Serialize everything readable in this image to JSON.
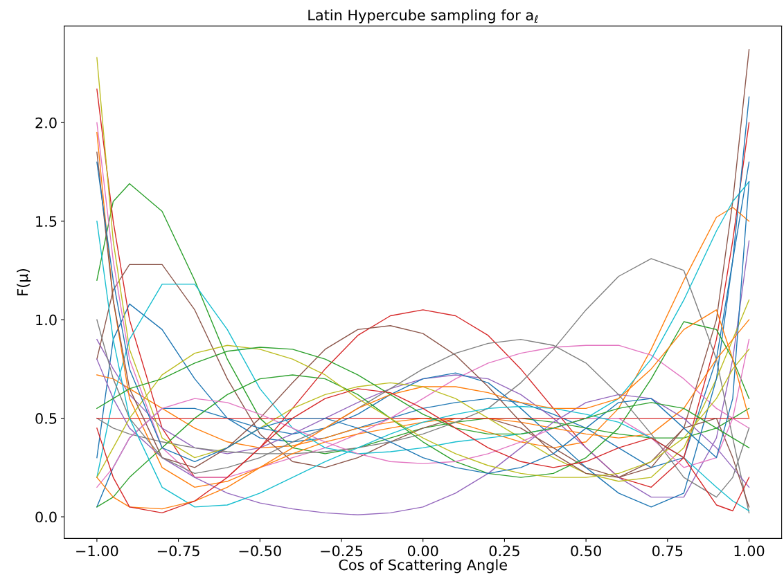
{
  "chart_data": {
    "type": "line",
    "title": "Latin Hypercube sampling for a$_{ℓ}$",
    "xlabel": "Cos of Scattering Angle",
    "ylabel": "F(μ)",
    "x": [
      -1,
      -0.95,
      -0.9,
      -0.8,
      -0.7,
      -0.6,
      -0.5,
      -0.4,
      -0.3,
      -0.2,
      -0.1,
      0,
      0.1,
      0.2,
      0.3,
      0.4,
      0.5,
      0.6,
      0.7,
      0.8,
      0.9,
      0.95,
      1
    ],
    "xlim": [
      -1.1,
      1.1
    ],
    "ylim": [
      -0.11,
      2.49
    ],
    "xticks": [
      {
        "value": -1,
        "label": "−1.00"
      },
      {
        "value": -0.75,
        "label": "−0.75"
      },
      {
        "value": -0.5,
        "label": "−0.50"
      },
      {
        "value": -0.25,
        "label": "−0.25"
      },
      {
        "value": 0,
        "label": "0.00"
      },
      {
        "value": 0.25,
        "label": "0.25"
      },
      {
        "value": 0.5,
        "label": "0.50"
      },
      {
        "value": 0.75,
        "label": "0.75"
      },
      {
        "value": 1,
        "label": "1.00"
      }
    ],
    "yticks": [
      {
        "value": 0,
        "label": "0.0"
      },
      {
        "value": 0.5,
        "label": "0.5"
      },
      {
        "value": 1,
        "label": "1.0"
      },
      {
        "value": 1.5,
        "label": "1.5"
      },
      {
        "value": 2,
        "label": "2.0"
      }
    ],
    "grid": false,
    "marker": "none",
    "line_style": "solid",
    "series": [
      {
        "color": "#1f77b4",
        "values": [
          0.3,
          0.9,
          1.08,
          0.95,
          0.7,
          0.5,
          0.4,
          0.38,
          0.4,
          0.45,
          0.5,
          0.55,
          0.58,
          0.6,
          0.58,
          0.52,
          0.45,
          0.35,
          0.25,
          0.3,
          0.8,
          1.3,
          1.8
        ]
      },
      {
        "color": "#ff7f0e",
        "values": [
          0.72,
          0.7,
          0.65,
          0.55,
          0.45,
          0.38,
          0.35,
          0.36,
          0.4,
          0.45,
          0.48,
          0.5,
          0.48,
          0.43,
          0.38,
          0.35,
          0.38,
          0.55,
          0.85,
          1.2,
          1.52,
          1.57,
          1.5
        ]
      },
      {
        "color": "#2ca02c",
        "values": [
          1.2,
          1.6,
          1.69,
          1.55,
          1.2,
          0.8,
          0.5,
          0.35,
          0.32,
          0.35,
          0.4,
          0.45,
          0.48,
          0.5,
          0.5,
          0.48,
          0.45,
          0.42,
          0.4,
          0.4,
          0.45,
          0.5,
          0.55
        ]
      },
      {
        "color": "#d62728",
        "values": [
          2.17,
          1.5,
          1.0,
          0.45,
          0.2,
          0.2,
          0.35,
          0.55,
          0.75,
          0.92,
          1.02,
          1.05,
          1.02,
          0.92,
          0.75,
          0.55,
          0.35,
          0.2,
          0.15,
          0.3,
          0.9,
          1.4,
          2.0
        ]
      },
      {
        "color": "#9467bd",
        "values": [
          0.9,
          0.75,
          0.62,
          0.45,
          0.35,
          0.32,
          0.35,
          0.42,
          0.5,
          0.58,
          0.65,
          0.7,
          0.72,
          0.7,
          0.62,
          0.5,
          0.35,
          0.2,
          0.1,
          0.1,
          0.4,
          0.8,
          1.4
        ]
      },
      {
        "color": "#8c564b",
        "values": [
          0.8,
          1.15,
          1.28,
          1.28,
          1.05,
          0.7,
          0.42,
          0.28,
          0.25,
          0.3,
          0.38,
          0.45,
          0.5,
          0.5,
          0.45,
          0.35,
          0.25,
          0.2,
          0.25,
          0.45,
          1.0,
          1.6,
          2.37
        ]
      },
      {
        "color": "#e377c2",
        "values": [
          2.0,
          1.3,
          0.8,
          0.35,
          0.2,
          0.2,
          0.25,
          0.3,
          0.35,
          0.42,
          0.5,
          0.6,
          0.7,
          0.78,
          0.83,
          0.86,
          0.87,
          0.87,
          0.82,
          0.7,
          0.55,
          0.5,
          0.45
        ]
      },
      {
        "color": "#7f7f7f",
        "values": [
          0.5,
          0.45,
          0.42,
          0.38,
          0.35,
          0.33,
          0.32,
          0.32,
          0.33,
          0.35,
          0.38,
          0.42,
          0.48,
          0.55,
          0.68,
          0.85,
          1.05,
          1.22,
          1.31,
          1.25,
          0.8,
          0.4,
          0.02
        ]
      },
      {
        "color": "#bcbd22",
        "values": [
          2.33,
          1.4,
          0.85,
          0.4,
          0.3,
          0.35,
          0.45,
          0.55,
          0.62,
          0.66,
          0.68,
          0.66,
          0.6,
          0.5,
          0.4,
          0.3,
          0.22,
          0.18,
          0.2,
          0.35,
          0.7,
          0.9,
          1.1
        ]
      },
      {
        "color": "#17becf",
        "values": [
          0.2,
          0.6,
          0.9,
          1.18,
          1.18,
          0.95,
          0.65,
          0.45,
          0.35,
          0.32,
          0.33,
          0.35,
          0.38,
          0.4,
          0.42,
          0.45,
          0.5,
          0.6,
          0.8,
          1.1,
          1.45,
          1.6,
          1.7
        ]
      },
      {
        "color": "#1f77b4",
        "values": [
          0.05,
          0.25,
          0.4,
          0.55,
          0.55,
          0.5,
          0.45,
          0.42,
          0.45,
          0.52,
          0.62,
          0.7,
          0.73,
          0.68,
          0.55,
          0.4,
          0.25,
          0.12,
          0.05,
          0.12,
          0.7,
          1.3,
          2.13
        ]
      },
      {
        "color": "#ff7f0e",
        "values": [
          1.95,
          1.1,
          0.6,
          0.25,
          0.15,
          0.18,
          0.25,
          0.32,
          0.38,
          0.42,
          0.45,
          0.48,
          0.5,
          0.5,
          0.48,
          0.45,
          0.42,
          0.4,
          0.42,
          0.55,
          0.8,
          0.9,
          1.0
        ]
      },
      {
        "color": "#2ca02c",
        "values": [
          0.05,
          0.1,
          0.2,
          0.35,
          0.5,
          0.62,
          0.7,
          0.72,
          0.7,
          0.62,
          0.5,
          0.38,
          0.28,
          0.22,
          0.2,
          0.22,
          0.3,
          0.45,
          0.7,
          0.99,
          0.95,
          0.8,
          0.6
        ]
      },
      {
        "color": "#d62728",
        "values": [
          0.5,
          0.5,
          0.5,
          0.5,
          0.5,
          0.5,
          0.5,
          0.5,
          0.5,
          0.5,
          0.5,
          0.5,
          0.5,
          0.5,
          0.5,
          0.5,
          0.5,
          0.5,
          0.5,
          0.5,
          0.5,
          0.5,
          0.5
        ]
      },
      {
        "color": "#9467bd",
        "values": [
          0.8,
          0.6,
          0.45,
          0.3,
          0.2,
          0.12,
          0.07,
          0.04,
          0.02,
          0.01,
          0.02,
          0.05,
          0.12,
          0.22,
          0.35,
          0.48,
          0.58,
          0.62,
          0.6,
          0.5,
          0.35,
          0.25,
          0.15
        ]
      },
      {
        "color": "#8c564b",
        "values": [
          1.85,
          1.1,
          0.65,
          0.3,
          0.25,
          0.35,
          0.5,
          0.68,
          0.85,
          0.95,
          0.97,
          0.93,
          0.82,
          0.66,
          0.48,
          0.32,
          0.22,
          0.2,
          0.28,
          0.45,
          0.5,
          0.3,
          0.05
        ]
      },
      {
        "color": "#e377c2",
        "values": [
          0.15,
          0.25,
          0.4,
          0.55,
          0.6,
          0.58,
          0.52,
          0.45,
          0.38,
          0.32,
          0.28,
          0.27,
          0.28,
          0.32,
          0.38,
          0.45,
          0.5,
          0.5,
          0.4,
          0.25,
          0.3,
          0.5,
          0.9
        ]
      },
      {
        "color": "#7f7f7f",
        "values": [
          1.0,
          0.7,
          0.5,
          0.3,
          0.22,
          0.25,
          0.3,
          0.38,
          0.45,
          0.55,
          0.65,
          0.75,
          0.83,
          0.88,
          0.9,
          0.87,
          0.78,
          0.62,
          0.42,
          0.2,
          0.1,
          0.2,
          0.45
        ]
      },
      {
        "color": "#bcbd22",
        "values": [
          0.2,
          0.35,
          0.5,
          0.72,
          0.83,
          0.87,
          0.85,
          0.8,
          0.72,
          0.6,
          0.5,
          0.4,
          0.32,
          0.26,
          0.22,
          0.2,
          0.2,
          0.22,
          0.28,
          0.4,
          0.6,
          0.75,
          0.85
        ]
      },
      {
        "color": "#17becf",
        "values": [
          1.5,
          0.9,
          0.5,
          0.15,
          0.05,
          0.06,
          0.12,
          0.2,
          0.28,
          0.35,
          0.42,
          0.48,
          0.52,
          0.55,
          0.56,
          0.55,
          0.52,
          0.48,
          0.4,
          0.3,
          0.15,
          0.08,
          0.03
        ]
      },
      {
        "color": "#1f77b4",
        "values": [
          1.8,
          1.2,
          0.75,
          0.35,
          0.28,
          0.35,
          0.45,
          0.5,
          0.5,
          0.45,
          0.38,
          0.3,
          0.25,
          0.22,
          0.25,
          0.32,
          0.45,
          0.58,
          0.6,
          0.45,
          0.3,
          0.6,
          1.7
        ]
      },
      {
        "color": "#ff7f0e",
        "values": [
          0.2,
          0.1,
          0.05,
          0.04,
          0.08,
          0.15,
          0.25,
          0.35,
          0.45,
          0.55,
          0.62,
          0.66,
          0.66,
          0.63,
          0.58,
          0.55,
          0.55,
          0.6,
          0.75,
          0.95,
          1.05,
          0.8,
          0.5
        ]
      },
      {
        "color": "#2ca02c",
        "values": [
          0.55,
          0.6,
          0.65,
          0.7,
          0.78,
          0.84,
          0.86,
          0.85,
          0.8,
          0.72,
          0.62,
          0.52,
          0.45,
          0.42,
          0.42,
          0.45,
          0.5,
          0.55,
          0.58,
          0.55,
          0.45,
          0.4,
          0.35
        ]
      },
      {
        "color": "#d62728",
        "values": [
          0.45,
          0.2,
          0.05,
          0.02,
          0.08,
          0.2,
          0.35,
          0.5,
          0.6,
          0.65,
          0.63,
          0.55,
          0.45,
          0.35,
          0.28,
          0.25,
          0.28,
          0.35,
          0.4,
          0.3,
          0.06,
          0.03,
          0.2
        ]
      }
    ]
  }
}
